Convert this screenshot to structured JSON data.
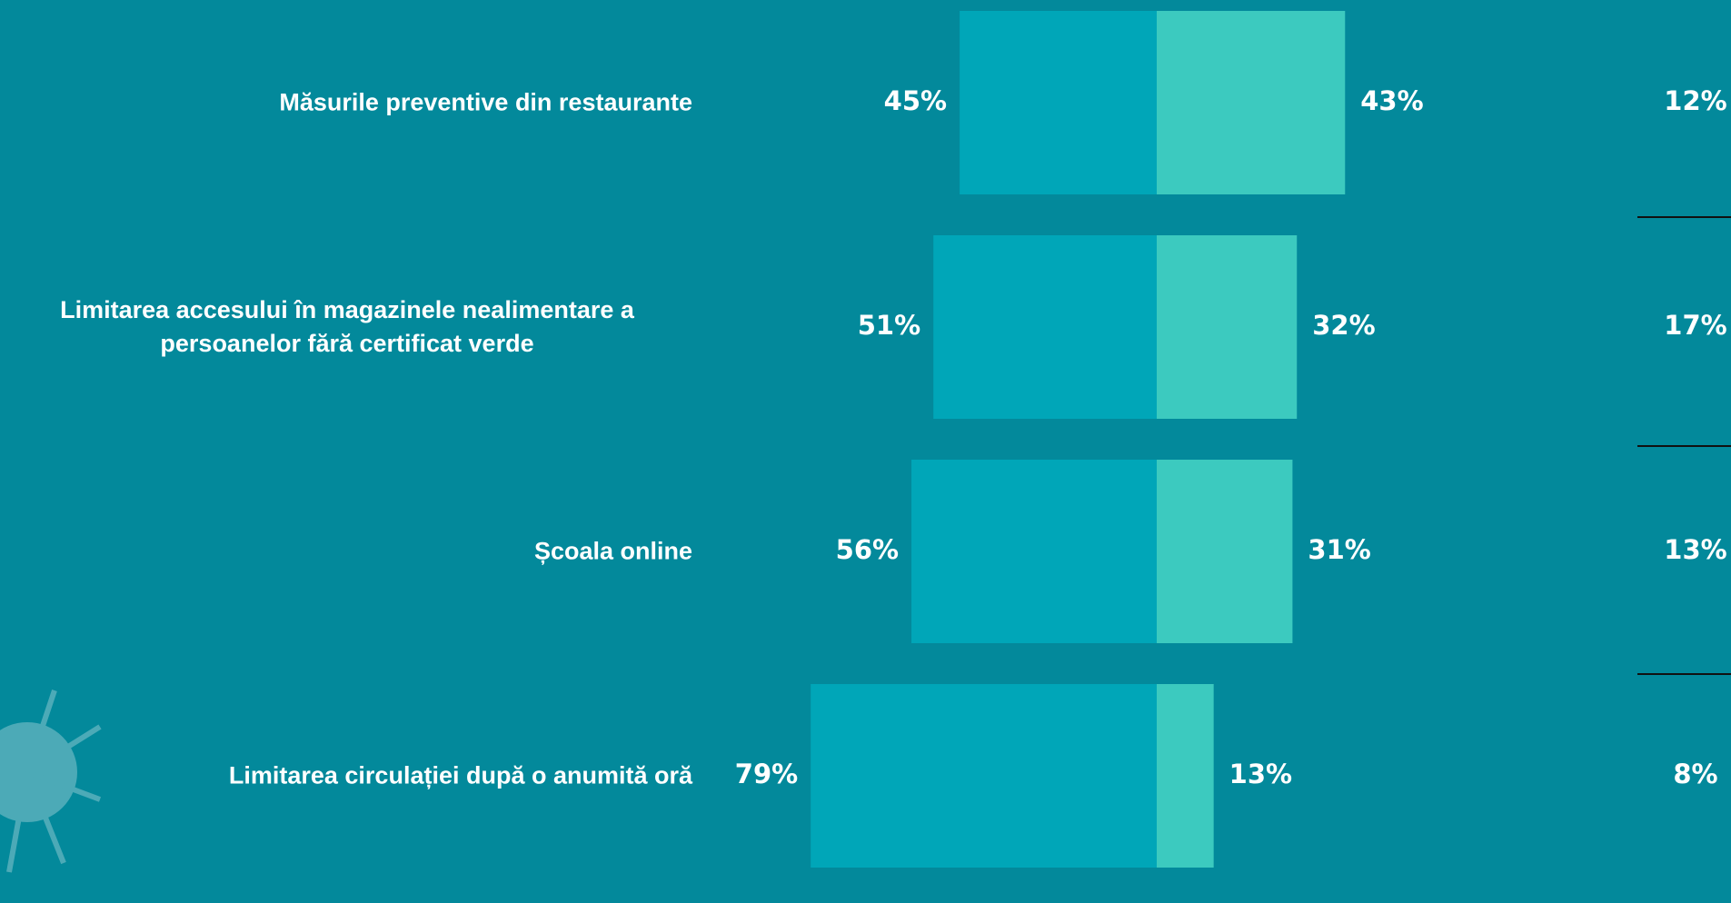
{
  "chart_data": {
    "type": "diverging_bar",
    "categories": [
      "Măsurile preventive din restaurante",
      "Limitarea accesului în magazinele nealimentare a persoanelor fără certificat verde",
      "Școala online",
      "Limitarea circulației după o anumită oră"
    ],
    "series": [
      {
        "color": "#00a6b8",
        "values": [
          45,
          51,
          56,
          79
        ],
        "value_labels": [
          "45%",
          "51%",
          "56%",
          "79%"
        ]
      },
      {
        "color": "#3ccabf",
        "values": [
          43,
          32,
          31,
          13
        ],
        "value_labels": [
          "43%",
          "32%",
          "31%",
          "13%"
        ]
      },
      {
        "values": [
          12,
          17,
          13,
          8
        ],
        "value_labels": [
          "12%",
          "17%",
          "13%",
          "8%"
        ]
      }
    ]
  }
}
